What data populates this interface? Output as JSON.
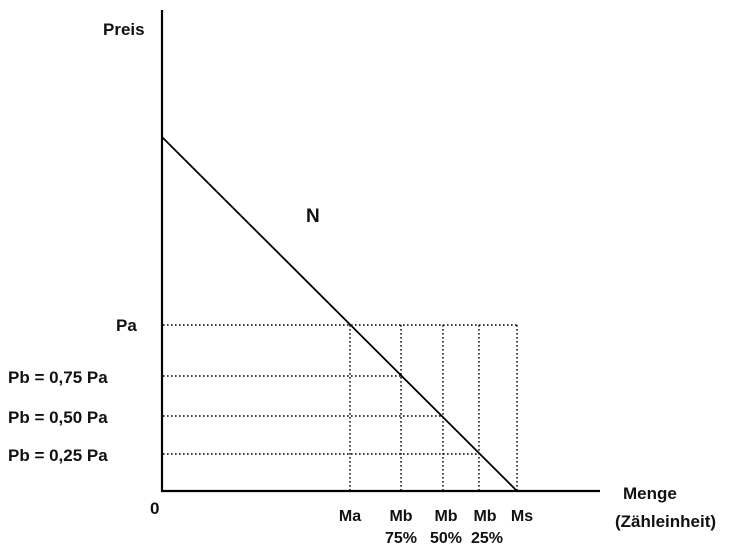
{
  "labels": {
    "y_axis": "Preis",
    "x_axis_line1": "Menge",
    "x_axis_line2": "(Zähleinheit)",
    "origin": "0",
    "curve": "N"
  },
  "price_levels": [
    {
      "id": "pa",
      "label": "Pa"
    },
    {
      "id": "pb75",
      "label": "Pb = 0,75 Pa"
    },
    {
      "id": "pb50",
      "label": "Pb = 0,50 Pa"
    },
    {
      "id": "pb25",
      "label": "Pb = 0,25 Pa"
    }
  ],
  "quantity_levels": [
    {
      "id": "ma",
      "label": "Ma",
      "sublabel": ""
    },
    {
      "id": "mb75",
      "label": "Mb",
      "sublabel": "75%"
    },
    {
      "id": "mb50",
      "label": "Mb",
      "sublabel": "50%"
    },
    {
      "id": "mb25",
      "label": "Mb",
      "sublabel": "25%"
    },
    {
      "id": "ms",
      "label": "Ms",
      "sublabel": ""
    }
  ]
}
